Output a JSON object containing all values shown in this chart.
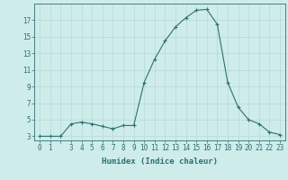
{
  "x": [
    0,
    1,
    2,
    3,
    4,
    5,
    6,
    7,
    8,
    9,
    10,
    11,
    12,
    13,
    14,
    15,
    16,
    17,
    18,
    19,
    20,
    21,
    22,
    23
  ],
  "y": [
    3.0,
    3.0,
    3.0,
    4.5,
    4.7,
    4.5,
    4.2,
    3.9,
    4.3,
    4.3,
    9.5,
    12.3,
    14.5,
    16.2,
    17.3,
    18.2,
    18.3,
    16.5,
    9.5,
    6.5,
    5.0,
    4.5,
    3.5,
    3.2
  ],
  "xlabel": "Humidex (Indice chaleur)",
  "xlim": [
    -0.5,
    23.5
  ],
  "ylim": [
    2.5,
    19.0
  ],
  "yticks": [
    3,
    5,
    7,
    9,
    11,
    13,
    15,
    17
  ],
  "xtick_labels": [
    "0",
    "1",
    "",
    "3",
    "4",
    "5",
    "6",
    "7",
    "8",
    "9",
    "10",
    "11",
    "12",
    "13",
    "14",
    "15",
    "16",
    "17",
    "18",
    "19",
    "20",
    "21",
    "22",
    "23"
  ],
  "line_color": "#2e7070",
  "marker": "+",
  "bg_color": "#cdecea",
  "grid_color": "#b8d8d6",
  "label_fontsize": 6.5,
  "tick_fontsize": 5.5
}
